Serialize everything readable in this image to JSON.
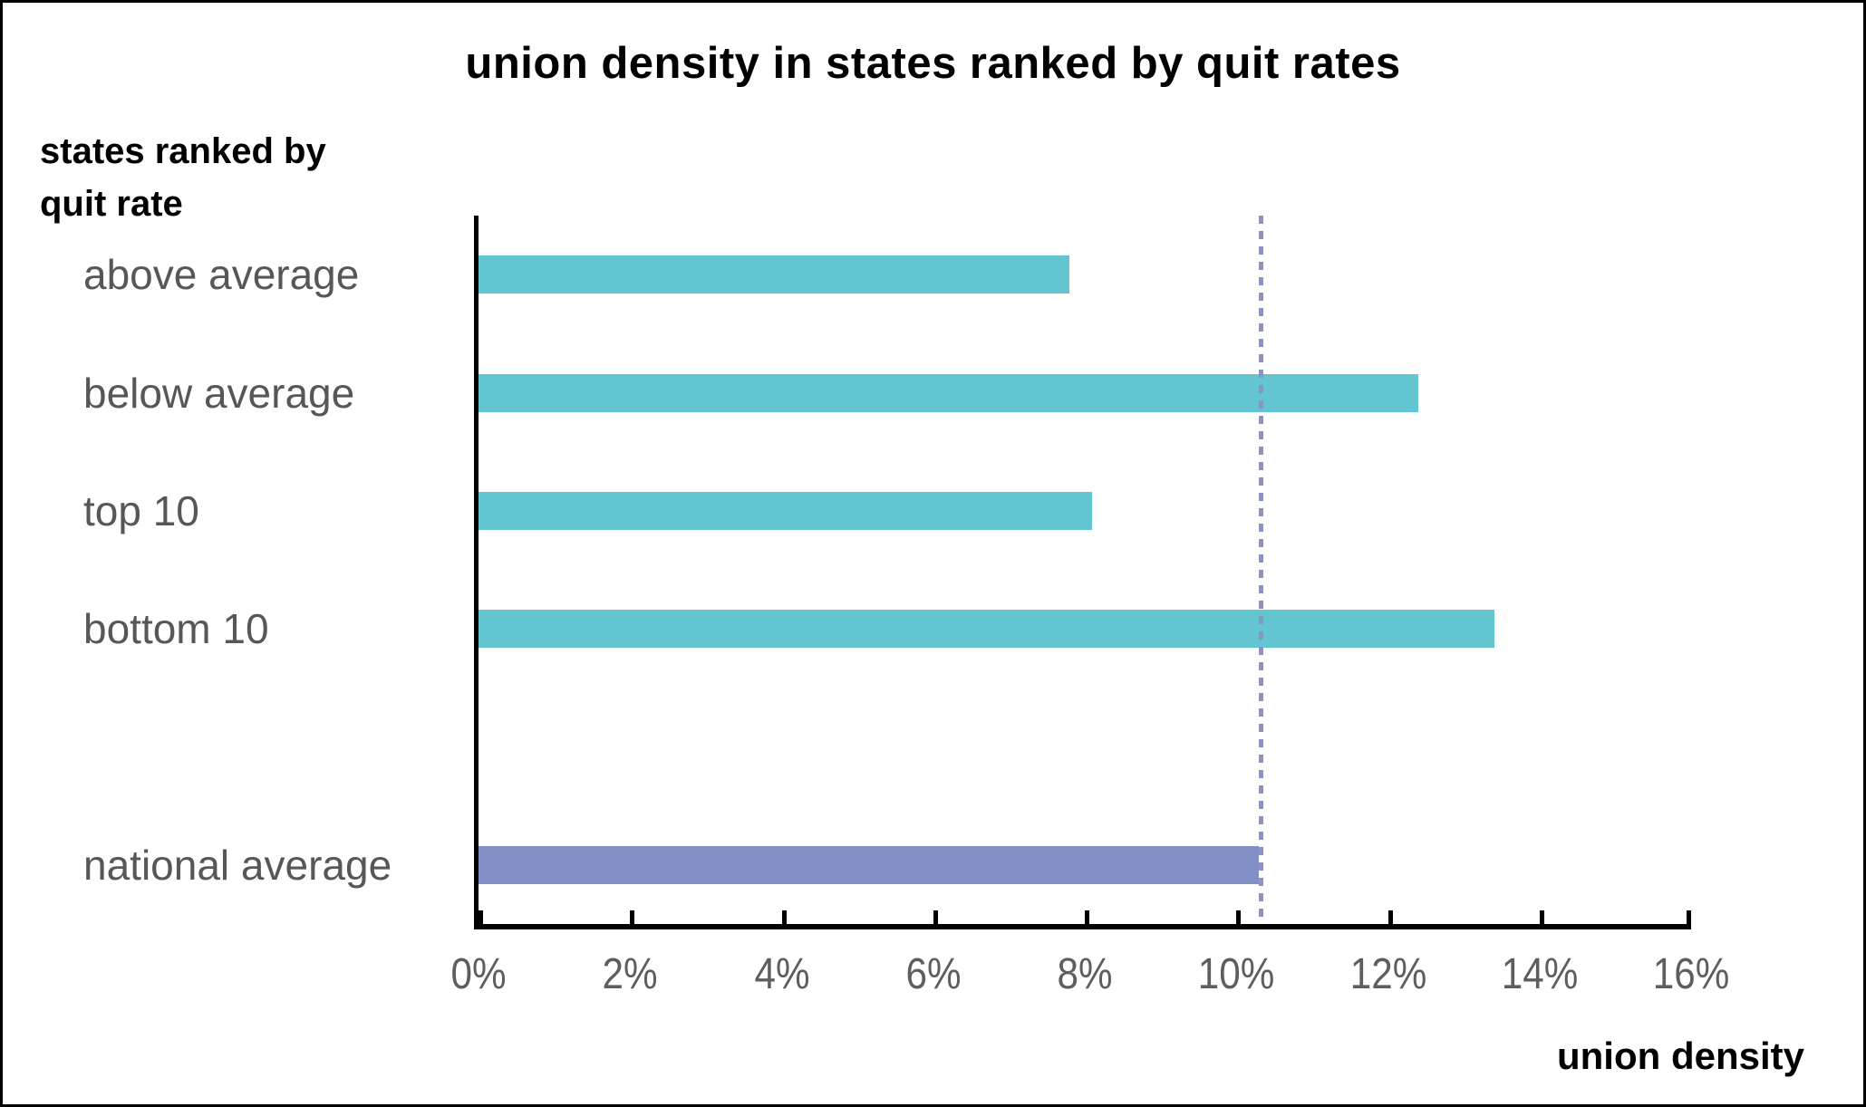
{
  "title": "union density in states ranked by quit rates",
  "y_axis_title": {
    "line1": "states ranked by",
    "line2": "quit rate"
  },
  "x_axis_title": "union density",
  "colors": {
    "bar_teal": "#62c5cf",
    "bar_purple": "#8390c5",
    "reference_line": "#8a94cb",
    "axis": "#000000",
    "label_gray": "#575757",
    "tick_gray": "#5e5e5e"
  },
  "chart_data": {
    "type": "bar",
    "orientation": "horizontal",
    "title": "union density in states ranked by quit rates",
    "xlabel": "union density",
    "ylabel": "states ranked by quit rate",
    "xlim": [
      0,
      16
    ],
    "grid": false,
    "legend": false,
    "x_ticks": [
      {
        "value": 0,
        "label": "0%"
      },
      {
        "value": 2,
        "label": "2%"
      },
      {
        "value": 4,
        "label": "4%"
      },
      {
        "value": 6,
        "label": "6%"
      },
      {
        "value": 8,
        "label": "8%"
      },
      {
        "value": 10,
        "label": "10%"
      },
      {
        "value": 12,
        "label": "12%"
      },
      {
        "value": 14,
        "label": "14%"
      },
      {
        "value": 16,
        "label": "16%"
      }
    ],
    "bars": [
      {
        "label": "above average",
        "value": 7.8,
        "color": "#62c5cf",
        "row": 0
      },
      {
        "label": "below average",
        "value": 12.4,
        "color": "#62c5cf",
        "row": 1
      },
      {
        "label": "top 10",
        "value": 8.1,
        "color": "#62c5cf",
        "row": 2
      },
      {
        "label": "bottom 10",
        "value": 13.4,
        "color": "#62c5cf",
        "row": 3
      },
      {
        "label": "national average",
        "value": 10.3,
        "color": "#8390c5",
        "row": 5
      }
    ],
    "rows_total": 6,
    "reference_line": {
      "value": 10.3,
      "style": "dashed",
      "color": "#8a94cb"
    }
  }
}
